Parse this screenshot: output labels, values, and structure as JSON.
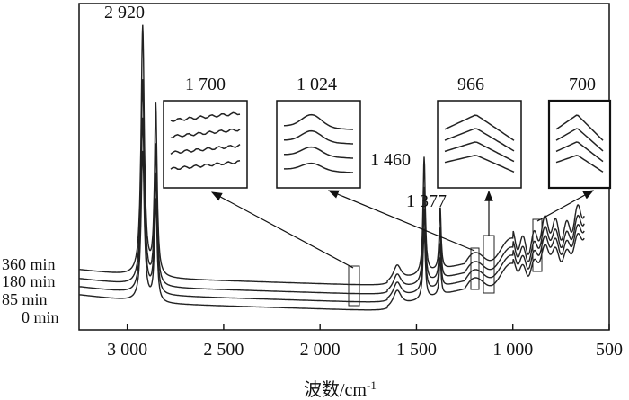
{
  "chart_data": {
    "type": "line",
    "xlabel": "波数/cm",
    "xlabel_sup": "-1",
    "x_ticks": [
      {
        "value": 3000,
        "label": "3 000"
      },
      {
        "value": 2500,
        "label": "2 500"
      },
      {
        "value": 2000,
        "label": "2 000"
      },
      {
        "value": 1500,
        "label": "1 500"
      },
      {
        "value": 1000,
        "label": "1 000"
      },
      {
        "value": 500,
        "label": "500"
      }
    ],
    "xlim": [
      3250,
      500
    ],
    "x_reversed": true,
    "series": [
      {
        "name": "360 min"
      },
      {
        "name": "180 min"
      },
      {
        "name": "85 min"
      },
      {
        "name": "0 min"
      }
    ],
    "peaks": [
      {
        "value": 2920,
        "label": "2 920"
      },
      {
        "value": 1460,
        "label": "1 460"
      },
      {
        "value": 1377,
        "label": "1 377"
      }
    ],
    "insets": [
      {
        "value": 1700,
        "label": "1 700"
      },
      {
        "value": 1024,
        "label": "1 024"
      },
      {
        "value": 966,
        "label": "966"
      },
      {
        "value": 700,
        "label": "700"
      }
    ]
  }
}
